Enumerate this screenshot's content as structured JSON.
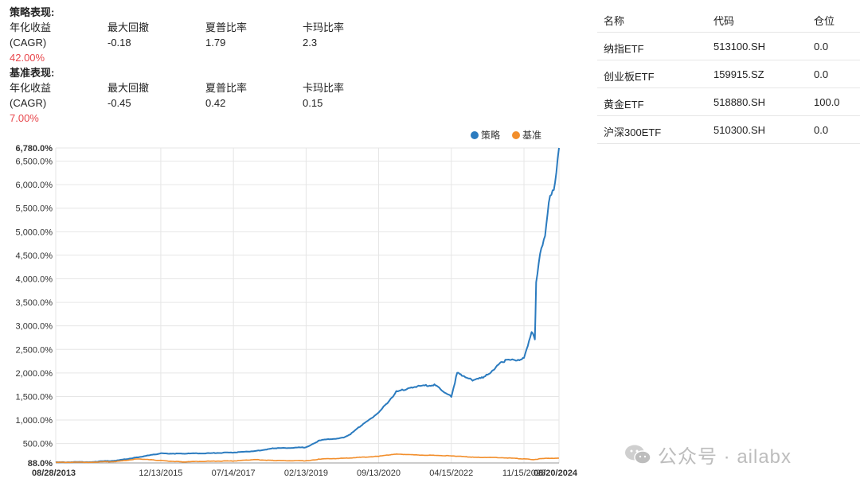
{
  "strategy_metrics": {
    "title": "策略表现:",
    "labels": [
      "年化收益",
      "最大回撤",
      "夏普比率",
      "卡玛比率"
    ],
    "cagr_label": "(CAGR)",
    "max_drawdown": "-0.18",
    "sharpe": "1.79",
    "calmar": "2.3",
    "cagr_value": "42.00%"
  },
  "benchmark_metrics": {
    "title": "基准表现:",
    "labels": [
      "年化收益",
      "最大回撤",
      "夏普比率",
      "卡玛比率"
    ],
    "cagr_label": "(CAGR)",
    "max_drawdown": "-0.45",
    "sharpe": "0.42",
    "calmar": "0.15",
    "cagr_value": "7.00%"
  },
  "holdings": {
    "headers": [
      "名称",
      "代码",
      "仓位"
    ],
    "rows": [
      {
        "name": "纳指ETF",
        "code": "513100.SH",
        "position": "0.0"
      },
      {
        "name": "创业板ETF",
        "code": "159915.SZ",
        "position": "0.0"
      },
      {
        "name": "黄金ETF",
        "code": "518880.SH",
        "position": "100.0"
      },
      {
        "name": "沪深300ETF",
        "code": "510300.SH",
        "position": "0.0"
      }
    ]
  },
  "watermark": {
    "text": "公众号 · ailabx",
    "icon": "wechat-icon"
  },
  "chart_data": {
    "type": "line",
    "legend": [
      "策略",
      "基准"
    ],
    "legend_position": "top-right",
    "colors": {
      "strategy": "#2b7bbf",
      "benchmark": "#f28e2b",
      "grid": "#e6e6e6"
    },
    "y_tick_labels": [
      "88.0%",
      "500.0%",
      "1,000.0%",
      "1,500.0%",
      "2,000.0%",
      "2,500.0%",
      "3,000.0%",
      "3,500.0%",
      "4,000.0%",
      "4,500.0%",
      "5,000.0%",
      "5,500.0%",
      "6,000.0%",
      "6,500.0%",
      "6,780.0%"
    ],
    "y_ticks": [
      88,
      500,
      1000,
      1500,
      2000,
      2500,
      3000,
      3500,
      4000,
      4500,
      5000,
      5500,
      6000,
      6500,
      6780
    ],
    "ylim": [
      88,
      6780
    ],
    "x_tick_labels": [
      "08/28/2013",
      "12/13/2015",
      "07/14/2017",
      "02/13/2019",
      "09/13/2020",
      "04/15/2022",
      "11/15/2023",
      "08/20/2024"
    ],
    "x_tick_dates": [
      "2013-08-28",
      "2015-12-13",
      "2017-07-14",
      "2019-02-13",
      "2020-09-13",
      "2022-04-15",
      "2023-11-15",
      "2024-08-20"
    ],
    "xlim": [
      "2013-08-28",
      "2024-08-20"
    ],
    "series": [
      {
        "name": "策略",
        "points": [
          [
            "2013-08-28",
            100
          ],
          [
            "2014-06-01",
            110
          ],
          [
            "2015-01-01",
            140
          ],
          [
            "2015-06-15",
            210
          ],
          [
            "2015-12-13",
            290
          ],
          [
            "2016-06-01",
            285
          ],
          [
            "2017-01-01",
            295
          ],
          [
            "2017-07-14",
            310
          ],
          [
            "2018-01-01",
            340
          ],
          [
            "2018-06-01",
            400
          ],
          [
            "2019-02-13",
            420
          ],
          [
            "2019-06-01",
            570
          ],
          [
            "2019-12-01",
            620
          ],
          [
            "2020-02-01",
            700
          ],
          [
            "2020-06-01",
            960
          ],
          [
            "2020-09-13",
            1150
          ],
          [
            "2020-12-01",
            1400
          ],
          [
            "2021-02-01",
            1600
          ],
          [
            "2021-06-01",
            1700
          ],
          [
            "2021-12-01",
            1750
          ],
          [
            "2022-04-15",
            1500
          ],
          [
            "2022-06-01",
            2000
          ],
          [
            "2022-10-01",
            1850
          ],
          [
            "2023-01-01",
            1900
          ],
          [
            "2023-06-01",
            2250
          ],
          [
            "2023-11-15",
            2300
          ],
          [
            "2024-01-15",
            2900
          ],
          [
            "2024-02-10",
            2700
          ],
          [
            "2024-02-20",
            3900
          ],
          [
            "2024-04-01",
            4700
          ],
          [
            "2024-05-01",
            4900
          ],
          [
            "2024-06-10",
            5800
          ],
          [
            "2024-07-20",
            6000
          ],
          [
            "2024-08-20",
            6780
          ]
        ]
      },
      {
        "name": "基准",
        "points": [
          [
            "2013-08-28",
            100
          ],
          [
            "2014-06-01",
            105
          ],
          [
            "2015-01-01",
            120
          ],
          [
            "2015-06-15",
            175
          ],
          [
            "2015-12-13",
            140
          ],
          [
            "2016-06-01",
            110
          ],
          [
            "2017-01-01",
            125
          ],
          [
            "2017-07-14",
            130
          ],
          [
            "2018-01-01",
            160
          ],
          [
            "2018-06-01",
            140
          ],
          [
            "2019-02-13",
            135
          ],
          [
            "2019-06-01",
            170
          ],
          [
            "2020-01-01",
            190
          ],
          [
            "2020-09-13",
            230
          ],
          [
            "2021-02-01",
            280
          ],
          [
            "2021-06-01",
            260
          ],
          [
            "2022-04-15",
            240
          ],
          [
            "2022-10-01",
            210
          ],
          [
            "2023-06-01",
            200
          ],
          [
            "2023-11-15",
            175
          ],
          [
            "2024-02-01",
            160
          ],
          [
            "2024-05-01",
            185
          ],
          [
            "2024-08-20",
            190
          ]
        ]
      }
    ]
  }
}
